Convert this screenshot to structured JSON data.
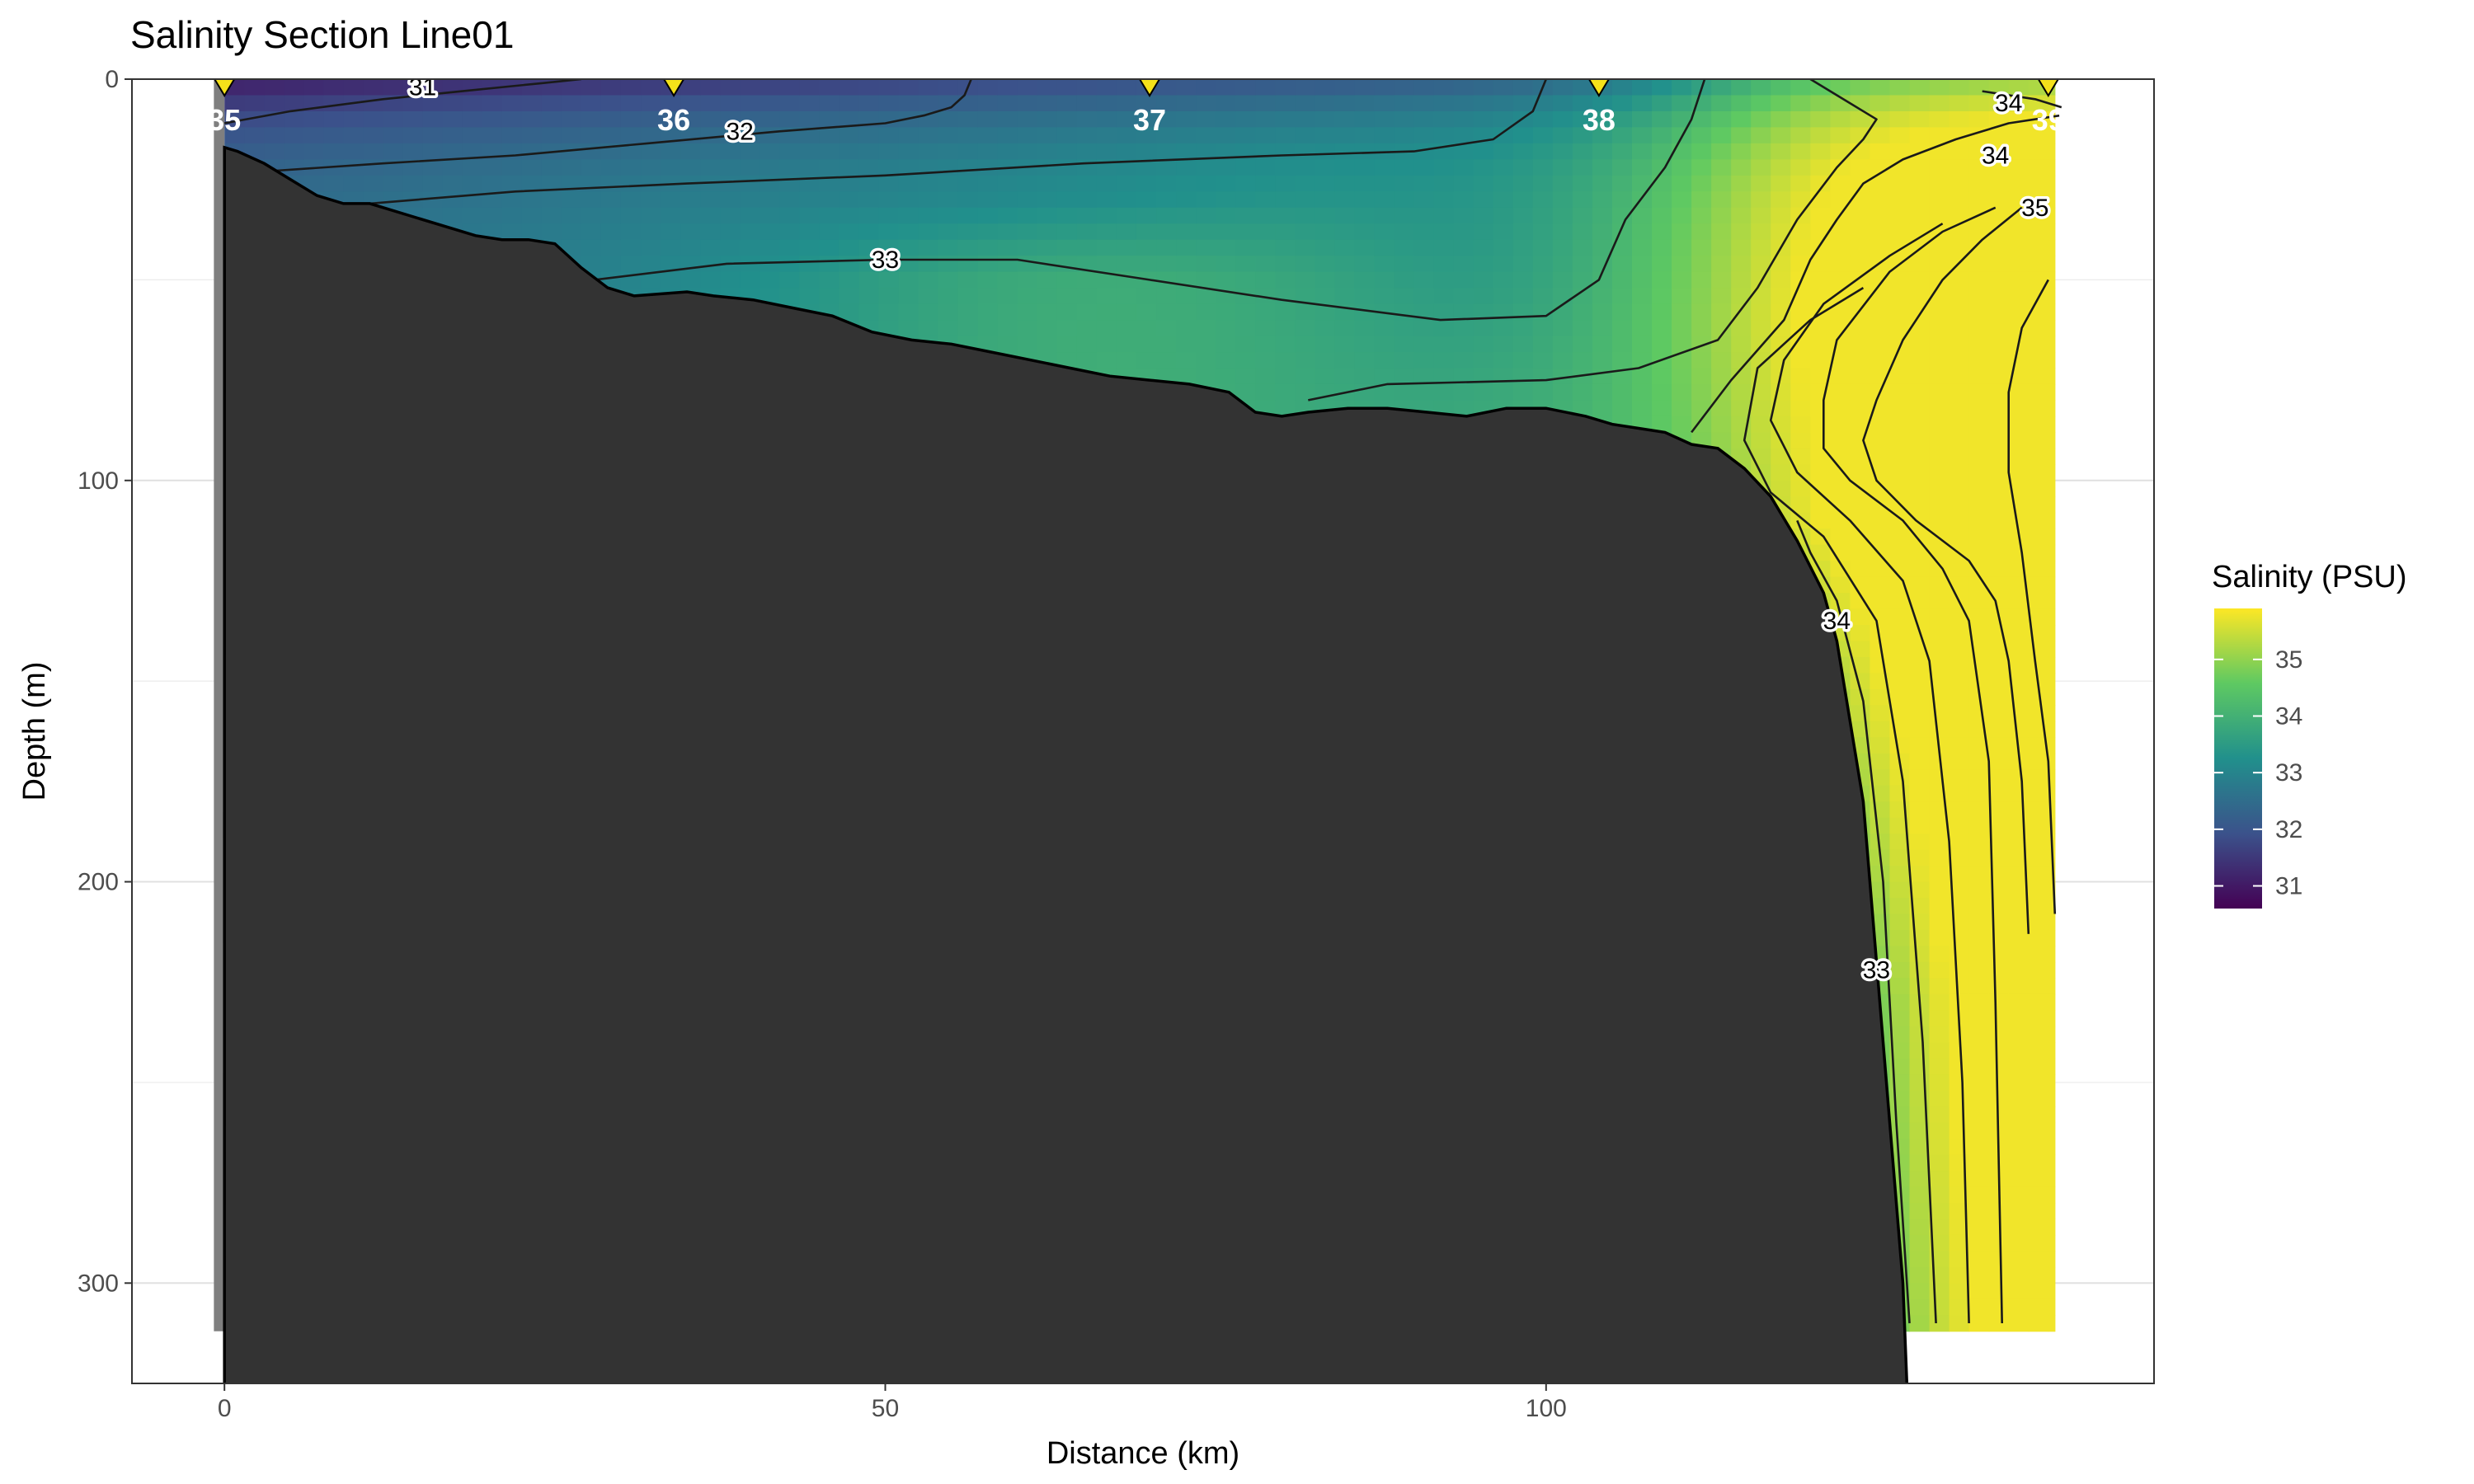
{
  "chart_data": {
    "type": "heatmap",
    "title": "Salinity Section Line01",
    "xlabel": "Distance (km)",
    "ylabel": "Depth (m)",
    "xlim": [
      -7,
      146
    ],
    "ylim": [
      0,
      325
    ],
    "y_reversed": true,
    "x_ticks": [
      0,
      50,
      100
    ],
    "y_ticks": [
      0,
      100,
      200,
      300
    ],
    "grid": true,
    "legend": {
      "title": "Salinity (PSU)",
      "position": "right",
      "ticks": [
        31,
        32,
        33,
        34,
        35
      ],
      "range": [
        30.6,
        35.9
      ],
      "colormap": [
        "#440154",
        "#3b528b",
        "#21908c",
        "#5ec962",
        "#fde725"
      ]
    },
    "stations": [
      {
        "label": "35",
        "x": 0
      },
      {
        "label": "36",
        "x": 34
      },
      {
        "label": "37",
        "x": 70
      },
      {
        "label": "38",
        "x": 104
      },
      {
        "label": "39",
        "x": 138
      }
    ],
    "bottom_profile": [
      [
        0,
        17
      ],
      [
        1,
        18
      ],
      [
        3,
        21
      ],
      [
        5,
        25
      ],
      [
        7,
        29
      ],
      [
        9,
        31
      ],
      [
        11,
        31
      ],
      [
        14,
        34
      ],
      [
        17,
        37
      ],
      [
        19,
        39
      ],
      [
        21,
        40
      ],
      [
        23,
        40
      ],
      [
        25,
        41
      ],
      [
        27,
        47
      ],
      [
        29,
        52
      ],
      [
        31,
        54
      ],
      [
        35,
        53
      ],
      [
        37,
        54
      ],
      [
        40,
        55
      ],
      [
        43,
        57
      ],
      [
        46,
        59
      ],
      [
        49,
        63
      ],
      [
        52,
        65
      ],
      [
        55,
        66
      ],
      [
        58,
        68
      ],
      [
        61,
        70
      ],
      [
        64,
        72
      ],
      [
        67,
        74
      ],
      [
        70,
        75
      ],
      [
        73,
        76
      ],
      [
        76,
        78
      ],
      [
        78,
        83
      ],
      [
        80,
        84
      ],
      [
        82,
        83
      ],
      [
        85,
        82
      ],
      [
        88,
        82
      ],
      [
        91,
        83
      ],
      [
        94,
        84
      ],
      [
        97,
        82
      ],
      [
        100,
        82
      ],
      [
        103,
        84
      ],
      [
        105,
        86
      ],
      [
        107,
        87
      ],
      [
        109,
        88
      ],
      [
        111,
        91
      ],
      [
        113,
        92
      ],
      [
        115,
        97
      ],
      [
        117,
        104
      ],
      [
        119,
        115
      ],
      [
        121,
        128
      ],
      [
        122,
        140
      ],
      [
        123,
        160
      ],
      [
        124,
        180
      ],
      [
        125,
        220
      ],
      [
        126,
        260
      ],
      [
        127,
        300
      ],
      [
        127.3,
        325
      ]
    ],
    "contours": [
      {
        "level": 31,
        "points": [
          [
            0,
            11
          ],
          [
            5,
            8
          ],
          [
            12,
            5
          ],
          [
            18,
            3
          ],
          [
            24,
            1
          ],
          [
            27,
            0
          ]
        ]
      },
      {
        "level": 32,
        "points": [
          [
            3,
            23
          ],
          [
            12,
            21
          ],
          [
            22,
            19
          ],
          [
            32,
            16
          ],
          [
            42,
            13
          ],
          [
            50,
            11
          ],
          [
            53,
            9
          ],
          [
            55,
            7
          ],
          [
            56,
            4
          ],
          [
            56.5,
            0
          ]
        ]
      },
      {
        "level": 32,
        "points": [
          [
            11,
            31
          ],
          [
            22,
            28
          ],
          [
            35,
            26
          ],
          [
            50,
            24
          ],
          [
            65,
            21
          ],
          [
            80,
            19
          ],
          [
            90,
            18
          ],
          [
            96,
            15
          ],
          [
            99,
            8
          ],
          [
            100,
            0
          ]
        ]
      },
      {
        "level": 33,
        "points": [
          [
            28,
            50
          ],
          [
            38,
            46
          ],
          [
            50,
            45
          ],
          [
            60,
            45
          ],
          [
            70,
            50
          ],
          [
            80,
            55
          ],
          [
            92,
            60
          ],
          [
            100,
            59
          ],
          [
            104,
            50
          ],
          [
            106,
            35
          ],
          [
            109,
            22
          ],
          [
            111,
            10
          ],
          [
            112,
            0
          ]
        ]
      },
      {
        "level": 33,
        "points": [
          [
            82,
            80
          ],
          [
            88,
            76
          ],
          [
            100,
            75
          ],
          [
            107,
            72
          ],
          [
            113,
            65
          ],
          [
            116,
            52
          ],
          [
            119,
            35
          ],
          [
            122,
            22
          ],
          [
            124,
            15
          ],
          [
            125,
            10
          ],
          [
            122,
            4
          ],
          [
            120,
            0
          ]
        ]
      },
      {
        "level": 34,
        "points": [
          [
            111,
            88
          ],
          [
            114,
            75
          ],
          [
            118,
            60
          ],
          [
            120,
            45
          ],
          [
            122,
            35
          ],
          [
            124,
            26
          ],
          [
            127,
            20
          ],
          [
            131,
            15
          ],
          [
            135,
            11
          ],
          [
            139,
            9
          ]
        ]
      },
      {
        "level": 34,
        "points": [
          [
            133,
            3
          ],
          [
            137,
            5
          ],
          [
            139,
            7
          ]
        ]
      },
      {
        "level": 35,
        "points": [
          [
            136,
            32
          ],
          [
            133,
            40
          ],
          [
            130,
            50
          ],
          [
            127,
            65
          ],
          [
            125,
            80
          ],
          [
            124,
            90
          ],
          [
            125,
            100
          ],
          [
            128,
            110
          ],
          [
            132,
            120
          ],
          [
            134,
            130
          ],
          [
            135,
            145
          ],
          [
            136,
            175
          ],
          [
            136.5,
            213
          ]
        ]
      },
      {
        "level": 35,
        "points": [
          [
            138,
            50
          ],
          [
            136,
            62
          ],
          [
            135,
            78
          ],
          [
            135,
            98
          ],
          [
            136,
            118
          ],
          [
            137,
            145
          ],
          [
            138,
            170
          ],
          [
            138.5,
            208
          ]
        ]
      },
      {
        "level": 34,
        "points": [
          [
            134,
            32
          ],
          [
            130,
            38
          ],
          [
            126,
            48
          ],
          [
            122,
            65
          ],
          [
            121,
            80
          ],
          [
            121,
            92
          ],
          [
            123,
            100
          ],
          [
            127,
            110
          ],
          [
            130,
            122
          ],
          [
            132,
            135
          ],
          [
            133.5,
            170
          ],
          [
            134,
            230
          ],
          [
            134.5,
            310
          ]
        ]
      },
      {
        "level": 34,
        "points": [
          [
            130,
            36
          ],
          [
            126,
            44
          ],
          [
            121,
            56
          ],
          [
            118,
            70
          ],
          [
            117,
            85
          ],
          [
            119,
            98
          ],
          [
            123,
            110
          ],
          [
            127,
            125
          ],
          [
            129,
            145
          ],
          [
            130.5,
            190
          ],
          [
            131.5,
            250
          ],
          [
            132,
            310
          ]
        ]
      },
      {
        "level": 34,
        "points": [
          [
            124,
            52
          ],
          [
            120,
            60
          ],
          [
            116,
            72
          ],
          [
            115,
            90
          ],
          [
            117,
            103
          ],
          [
            121,
            114
          ],
          [
            125,
            135
          ],
          [
            127,
            175
          ],
          [
            128.5,
            240
          ],
          [
            129.5,
            310
          ]
        ]
      },
      {
        "level": 34,
        "points": [
          [
            119,
            110
          ],
          [
            120,
            118
          ],
          [
            122,
            130
          ],
          [
            124,
            155
          ],
          [
            125.5,
            200
          ],
          [
            126.5,
            260
          ],
          [
            127.5,
            310
          ]
        ]
      },
      {
        "level": 33,
        "points": [
          [
            121,
            130
          ],
          [
            122,
            155
          ],
          [
            123,
            195
          ],
          [
            124,
            240
          ],
          [
            125,
            280
          ],
          [
            125.5,
            310
          ]
        ]
      },
      {
        "level": 33,
        "points": [
          [
            121,
            160
          ],
          [
            122,
            210
          ],
          [
            123,
            260
          ],
          [
            124,
            310
          ]
        ]
      },
      {
        "level": 33,
        "points": [
          [
            123,
            250
          ],
          [
            123.5,
            280
          ],
          [
            124,
            310
          ]
        ]
      }
    ],
    "contour_labels": [
      {
        "text": "31",
        "x": 15,
        "y": 2
      },
      {
        "text": "32",
        "x": 39,
        "y": 13
      },
      {
        "text": "33",
        "x": 50,
        "y": 45
      },
      {
        "text": "34",
        "x": 135,
        "y": 6
      },
      {
        "text": "34",
        "x": 134,
        "y": 19
      },
      {
        "text": "35",
        "x": 137,
        "y": 32
      },
      {
        "text": "34",
        "x": 122,
        "y": 135
      },
      {
        "text": "33",
        "x": 125,
        "y": 222
      }
    ]
  }
}
